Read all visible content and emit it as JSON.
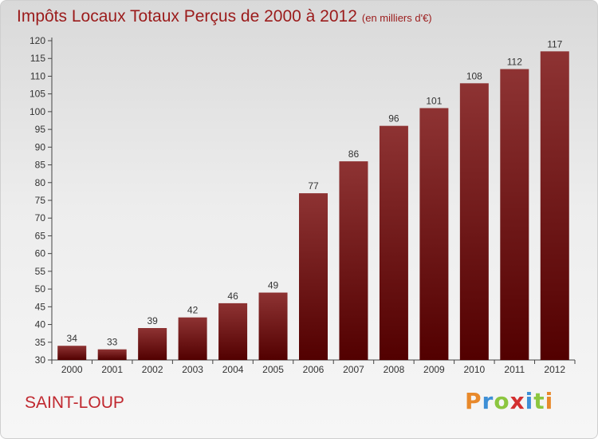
{
  "header": {
    "title": "Impôts Locaux Totaux Perçus de 2000 à 2012",
    "unit": "(en milliers d'€)"
  },
  "footer": {
    "commune": "SAINT-LOUP",
    "brand": "Proxiti",
    "brand_letters": [
      "P",
      "r",
      "o",
      "x",
      "i",
      "t",
      "i"
    ],
    "brand_colors": [
      "#e8892b",
      "#3d8fd6",
      "#8cc63f",
      "#d32f2f",
      "#3d8fd6",
      "#8cc63f",
      "#e8892b"
    ]
  },
  "colors": {
    "bar_top": "#8e3333",
    "bar_bottom": "#520000",
    "title": "#9b1b1b"
  },
  "chart_data": {
    "type": "bar",
    "title": "Impôts Locaux Totaux Perçus de 2000 à 2012",
    "categories": [
      "2000",
      "2001",
      "2002",
      "2003",
      "2004",
      "2005",
      "2006",
      "2007",
      "2008",
      "2009",
      "2010",
      "2011",
      "2012"
    ],
    "values": [
      34,
      33,
      39,
      42,
      46,
      49,
      77,
      86,
      96,
      101,
      108,
      112,
      117
    ],
    "ylim": [
      30,
      120
    ],
    "yticks": [
      30,
      35,
      40,
      45,
      50,
      55,
      60,
      65,
      70,
      75,
      80,
      85,
      90,
      95,
      100,
      105,
      110,
      115,
      120
    ],
    "grid": false,
    "xlabel": "",
    "ylabel": ""
  }
}
